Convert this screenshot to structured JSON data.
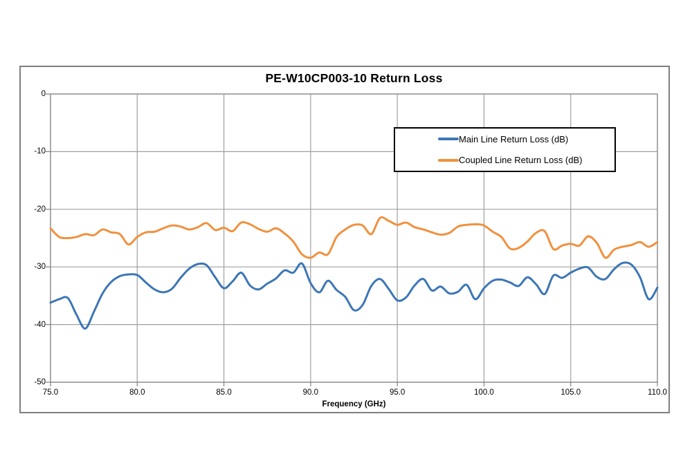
{
  "chart": {
    "title": "PE-W10CP003-10 Return Loss",
    "xlabel": "Frequency (GHz)"
  },
  "colors": {
    "main_line": "#3C76B5",
    "coupled_line": "#F0913E",
    "gridline": "#9F9F9F",
    "axis": "#808080",
    "frame_border": "#7F7F7F",
    "legend_border": "#000000",
    "text": "#000000",
    "background": "#FFFFFF"
  },
  "chart_data": {
    "type": "line",
    "title": "PE-W10CP003-10 Return Loss",
    "xlabel": "Frequency (GHz)",
    "ylabel": "",
    "xlim": [
      75,
      110
    ],
    "ylim": [
      -50,
      0
    ],
    "x_ticks": [
      75.0,
      80.0,
      85.0,
      90.0,
      95.0,
      100.0,
      105.0,
      110.0
    ],
    "x_tick_labels": [
      "75.0",
      "80.0",
      "85.0",
      "90.0",
      "95.0",
      "100.0",
      "105.0",
      "110.0"
    ],
    "y_ticks": [
      0,
      -10,
      -20,
      -30,
      -40,
      -50
    ],
    "y_tick_labels": [
      "0",
      "-10",
      "-20",
      "-30",
      "-40",
      "-50"
    ],
    "grid": true,
    "legend_position": "top-right-inside",
    "x_start": 75,
    "x_step": 0.5,
    "series": [
      {
        "name": "Main Line Return Loss (dB)",
        "color": "#3C76B5",
        "values": [
          -36.2,
          -35.6,
          -35.4,
          -38.3,
          -40.7,
          -37.8,
          -34.6,
          -32.6,
          -31.6,
          -31.3,
          -31.4,
          -32.7,
          -33.9,
          -34.4,
          -33.8,
          -31.9,
          -30.3,
          -29.5,
          -29.7,
          -31.8,
          -33.7,
          -32.5,
          -31.0,
          -33.2,
          -33.9,
          -32.9,
          -32.0,
          -30.6,
          -31.0,
          -29.4,
          -32.8,
          -34.4,
          -32.4,
          -34.0,
          -35.2,
          -37.5,
          -36.6,
          -33.3,
          -32.1,
          -33.8,
          -35.8,
          -35.3,
          -33.2,
          -32.1,
          -34.1,
          -33.4,
          -34.6,
          -34.3,
          -33.1,
          -35.6,
          -33.7,
          -32.4,
          -32.2,
          -32.7,
          -33.3,
          -31.8,
          -33.0,
          -34.7,
          -31.5,
          -31.9,
          -31.0,
          -30.3,
          -30.1,
          -31.7,
          -32.1,
          -30.4,
          -29.3,
          -29.6,
          -31.8,
          -35.6,
          -33.6
        ]
      },
      {
        "name": "Coupled Line Return Loss (dB)",
        "color": "#F0913E",
        "values": [
          -23.3,
          -24.8,
          -25.0,
          -24.8,
          -24.3,
          -24.5,
          -23.5,
          -24.0,
          -24.3,
          -26.1,
          -24.8,
          -24.0,
          -23.9,
          -23.3,
          -22.8,
          -23.0,
          -23.5,
          -23.1,
          -22.4,
          -23.6,
          -23.2,
          -23.8,
          -22.3,
          -22.6,
          -23.4,
          -23.9,
          -23.3,
          -24.2,
          -25.6,
          -27.8,
          -28.4,
          -27.5,
          -27.8,
          -24.8,
          -23.5,
          -22.7,
          -22.8,
          -24.3,
          -21.5,
          -22.0,
          -22.7,
          -22.3,
          -23.1,
          -23.5,
          -24.0,
          -24.4,
          -24.1,
          -23.0,
          -22.7,
          -22.6,
          -22.8,
          -23.9,
          -24.8,
          -26.8,
          -26.7,
          -25.6,
          -24.1,
          -23.8,
          -26.9,
          -26.3,
          -26.0,
          -26.3,
          -24.7,
          -25.8,
          -28.4,
          -27.0,
          -26.5,
          -26.2,
          -25.7,
          -26.5,
          -25.7
        ]
      }
    ]
  }
}
